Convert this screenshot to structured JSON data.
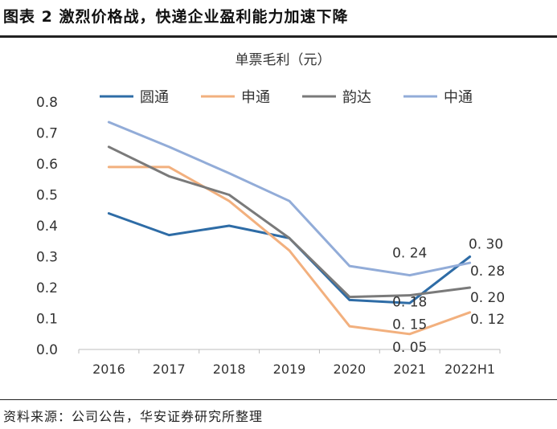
{
  "figure_title": "图表 2 激烈价格战，快递企业盈利能力加速下降",
  "source_note": "资料来源：公司公告，华安证券研究所整理",
  "chart_data": {
    "type": "line",
    "title": "单票毛利（元）",
    "xlabel": "",
    "ylabel": "",
    "categories": [
      "2016",
      "2017",
      "2018",
      "2019",
      "2020",
      "2021",
      "2022H1"
    ],
    "ylim": [
      0.0,
      0.8
    ],
    "yticks": [
      "0.0",
      "0.1",
      "0.2",
      "0.3",
      "0.4",
      "0.5",
      "0.6",
      "0.7",
      "0.8"
    ],
    "grid": false,
    "legend_position": "top",
    "series": [
      {
        "name": "圆通",
        "color": "#2e6ca6",
        "values": [
          0.44,
          0.37,
          0.4,
          0.36,
          0.16,
          0.15,
          0.3
        ]
      },
      {
        "name": "申通",
        "color": "#f2b07e",
        "values": [
          0.59,
          0.59,
          0.48,
          0.32,
          0.075,
          0.05,
          0.12
        ]
      },
      {
        "name": "韵达",
        "color": "#7a7a7a",
        "values": [
          0.655,
          0.56,
          0.5,
          0.36,
          0.17,
          0.175,
          0.2
        ]
      },
      {
        "name": "中通",
        "color": "#92acd8",
        "values": [
          0.735,
          0.655,
          0.57,
          0.48,
          0.27,
          0.24,
          0.28
        ]
      }
    ],
    "data_labels": [
      {
        "text": "0. 24",
        "series": 3,
        "index": 5
      },
      {
        "text": "0. 18",
        "series": 2,
        "index": 5
      },
      {
        "text": "0. 15",
        "series": 0,
        "index": 5
      },
      {
        "text": "0. 05",
        "series": 1,
        "index": 5
      },
      {
        "text": "0. 30",
        "series": 0,
        "index": 6
      },
      {
        "text": "0. 28",
        "series": 3,
        "index": 6
      },
      {
        "text": "0. 20",
        "series": 2,
        "index": 6
      },
      {
        "text": "0. 12",
        "series": 1,
        "index": 6
      }
    ]
  }
}
